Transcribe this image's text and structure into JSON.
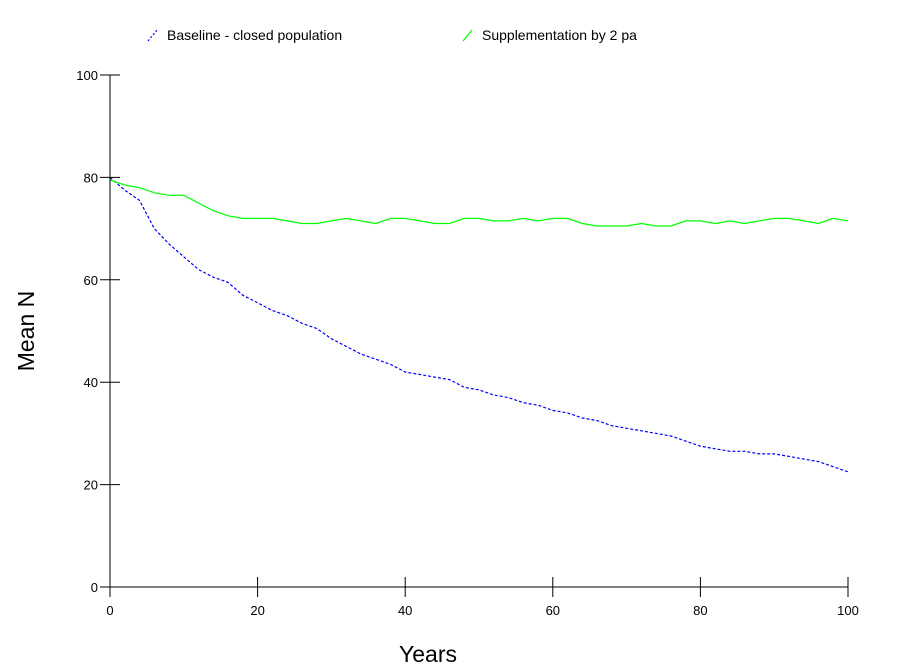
{
  "chart_data": {
    "type": "line",
    "xlabel": "Years",
    "ylabel": "Mean N",
    "xlim": [
      0,
      100
    ],
    "ylim": [
      0,
      100
    ],
    "xticks": [
      0,
      20,
      40,
      60,
      80,
      100
    ],
    "yticks": [
      0,
      20,
      40,
      60,
      80,
      100
    ],
    "grid": false,
    "legend_position": "top",
    "series": [
      {
        "name": "Baseline - closed population",
        "color": "#0000ff",
        "line_style": "dashed",
        "x": [
          0,
          2,
          4,
          6,
          8,
          10,
          12,
          14,
          16,
          18,
          20,
          22,
          24,
          26,
          28,
          30,
          32,
          34,
          36,
          38,
          40,
          42,
          44,
          46,
          48,
          50,
          52,
          54,
          56,
          58,
          60,
          62,
          64,
          66,
          68,
          70,
          72,
          74,
          76,
          78,
          80,
          82,
          84,
          86,
          88,
          90,
          92,
          94,
          96,
          98,
          100
        ],
        "y": [
          80,
          77.5,
          75.5,
          70,
          67,
          64.5,
          62,
          60.5,
          59.5,
          57,
          55.5,
          54,
          53,
          51.5,
          50.5,
          48.5,
          47,
          45.5,
          44.5,
          43.5,
          42,
          41.5,
          41,
          40.5,
          39,
          38.5,
          37.5,
          37,
          36,
          35.5,
          34.5,
          34,
          33,
          32.5,
          31.5,
          31,
          30.5,
          30,
          29.5,
          28.5,
          27.5,
          27,
          26.5,
          26.5,
          26,
          26,
          25.5,
          25,
          24.5,
          23.5,
          22.5
        ]
      },
      {
        "name": "Supplementation by 2 pa",
        "color": "#00ff00",
        "line_style": "solid",
        "x": [
          0,
          2,
          4,
          6,
          8,
          10,
          12,
          14,
          16,
          18,
          20,
          22,
          24,
          26,
          28,
          30,
          32,
          34,
          36,
          38,
          40,
          42,
          44,
          46,
          48,
          50,
          52,
          54,
          56,
          58,
          60,
          62,
          64,
          66,
          68,
          70,
          72,
          74,
          76,
          78,
          80,
          82,
          84,
          86,
          88,
          90,
          92,
          94,
          96,
          98,
          100
        ],
        "y": [
          79.5,
          78.5,
          78,
          77,
          76.5,
          76.5,
          75,
          73.5,
          72.5,
          72,
          72,
          72,
          71.5,
          71,
          71,
          71.5,
          72,
          71.5,
          71,
          72,
          72,
          71.5,
          71,
          71,
          72,
          72,
          71.5,
          71.5,
          72,
          71.5,
          72,
          72,
          71,
          70.5,
          70.5,
          70.5,
          71,
          70.5,
          70.5,
          71.5,
          71.5,
          71,
          71.5,
          71,
          71.5,
          72,
          72,
          71.5,
          71,
          72,
          71.5
        ]
      }
    ]
  }
}
